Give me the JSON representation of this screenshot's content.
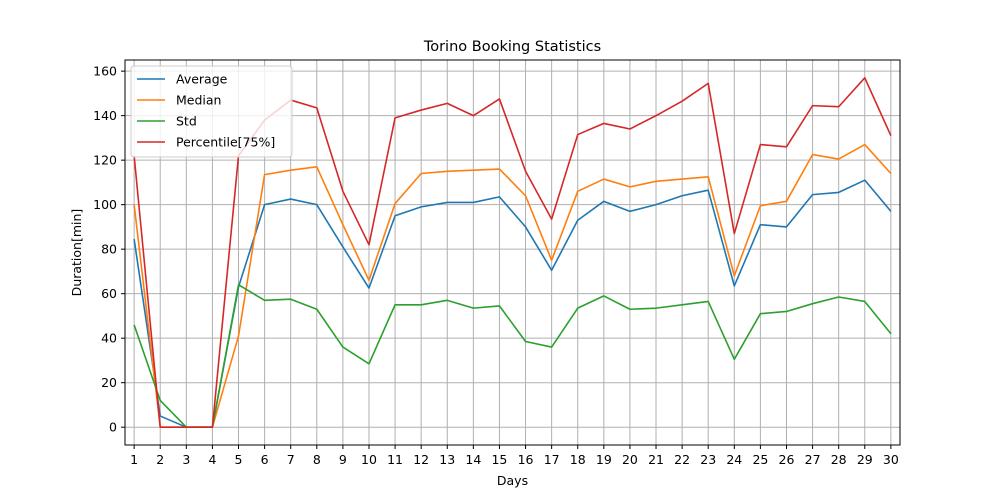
{
  "chart_data": {
    "type": "line",
    "title": "Torino Booking Statistics",
    "xlabel": "Days",
    "ylabel": "Duration[min]",
    "x": [
      1,
      2,
      3,
      4,
      5,
      6,
      7,
      8,
      9,
      10,
      11,
      12,
      13,
      14,
      15,
      16,
      17,
      18,
      19,
      20,
      21,
      22,
      23,
      24,
      25,
      26,
      27,
      28,
      29,
      30
    ],
    "xlim": [
      0.65,
      30.35
    ],
    "ylim": [
      -8,
      165
    ],
    "yticks": [
      0,
      20,
      40,
      60,
      80,
      100,
      120,
      140,
      160
    ],
    "grid": true,
    "legend_position": "top-left",
    "series": [
      {
        "name": "Average",
        "color": "#1f77b4",
        "values": [
          84.5,
          5,
          0,
          0,
          63,
          100,
          102.5,
          100,
          81,
          62.5,
          95,
          99,
          101,
          101,
          103.5,
          90,
          70.5,
          93,
          101.5,
          97,
          100,
          104,
          106.5,
          63.5,
          91,
          90,
          104.5,
          105.5,
          111,
          97
        ]
      },
      {
        "name": "Median",
        "color": "#ff7f0e",
        "values": [
          100,
          0,
          0,
          0,
          41,
          113.5,
          115.5,
          117,
          91,
          66,
          100.5,
          114,
          115,
          115.5,
          116,
          104,
          75,
          106,
          111.5,
          108,
          110.5,
          111.5,
          112.5,
          68,
          99.5,
          101.5,
          122.5,
          120.5,
          127,
          114
        ]
      },
      {
        "name": "Std",
        "color": "#2ca02c",
        "values": [
          46,
          12,
          0,
          0,
          64,
          57,
          57.5,
          53,
          36,
          28.5,
          55,
          55,
          57,
          53.5,
          54.5,
          38.5,
          36,
          53.5,
          59,
          53,
          53.5,
          55,
          56.5,
          30.5,
          51,
          52,
          55.5,
          58.5,
          56.5,
          42
        ]
      },
      {
        "name": "Percentile[75%]",
        "color": "#d62728",
        "values": [
          122,
          0,
          0,
          0,
          122,
          138,
          147,
          143.5,
          106,
          82,
          139,
          142.5,
          145.5,
          140,
          147.5,
          115,
          93.5,
          131.5,
          136.5,
          134,
          140,
          146.5,
          154.5,
          87,
          127,
          126,
          144.5,
          144,
          157,
          131
        ]
      }
    ]
  }
}
